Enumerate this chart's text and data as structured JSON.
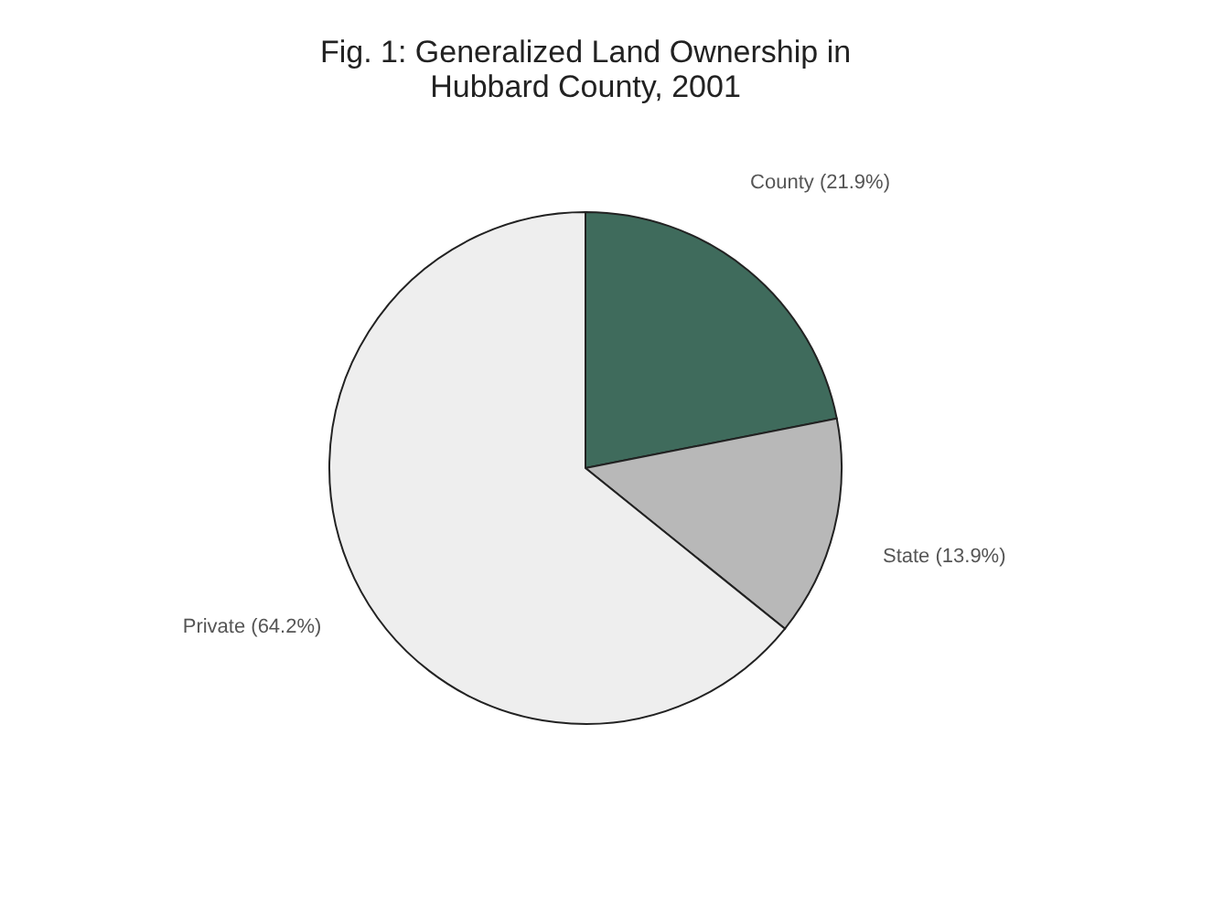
{
  "chart_data": {
    "type": "pie",
    "title": "Fig. 1: Generalized Land Ownership in Hubbard County, 2001",
    "categories": [
      "County (21.9%)",
      "State (13.9%)",
      "Private (64.2%)"
    ],
    "values": [
      21.9,
      13.9,
      64.2
    ],
    "colors": [
      "#3f6b5c",
      "#b8b8b8",
      "#eeeeee"
    ],
    "legend": false
  }
}
